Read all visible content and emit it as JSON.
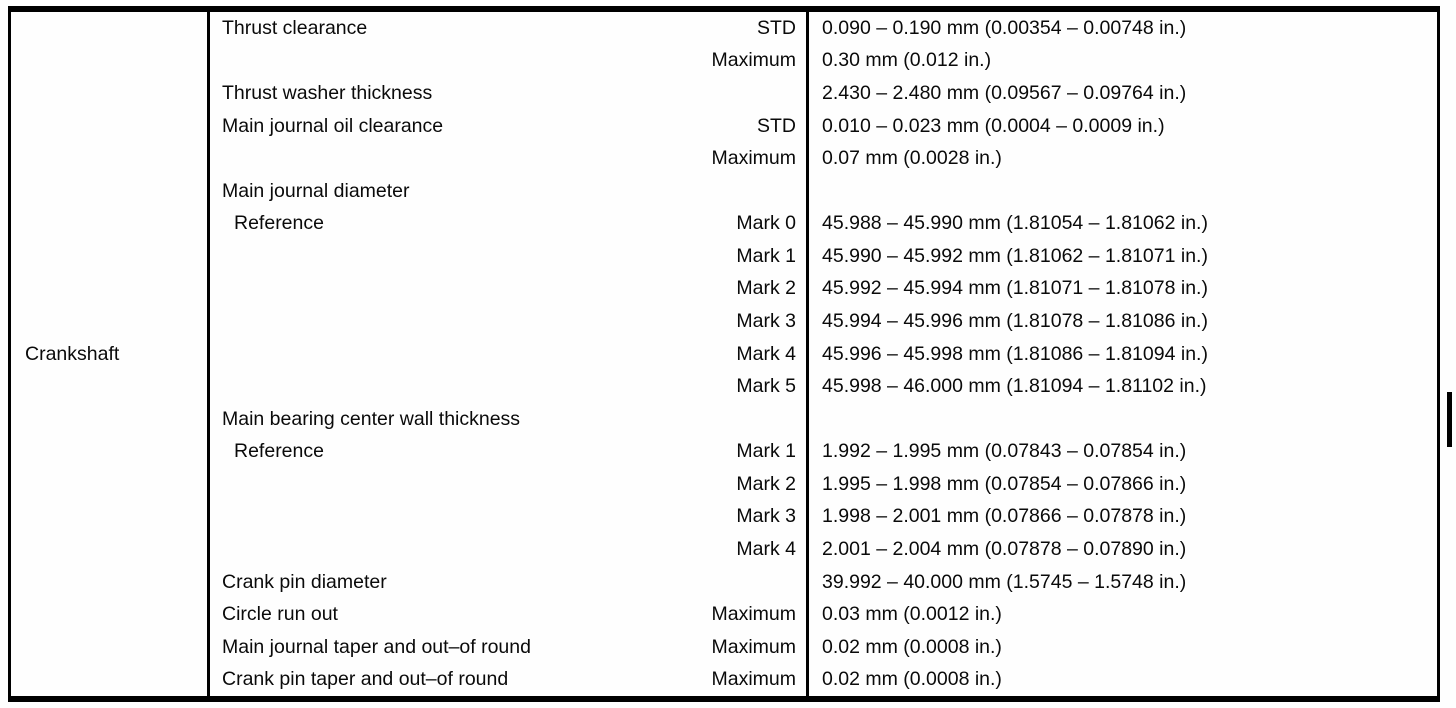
{
  "table": {
    "component": "Crankshaft",
    "rows": [
      {
        "label": "Thrust clearance",
        "indent": false,
        "qualifier": "STD",
        "value": "0.090 – 0.190 mm (0.00354 – 0.00748 in.)"
      },
      {
        "label": "",
        "indent": false,
        "qualifier": "Maximum",
        "value": "0.30 mm (0.012 in.)"
      },
      {
        "label": "Thrust washer thickness",
        "indent": false,
        "qualifier": "",
        "value": "2.430 – 2.480 mm (0.09567 – 0.09764 in.)"
      },
      {
        "label": "Main journal oil clearance",
        "indent": false,
        "qualifier": "STD",
        "value": "0.010 – 0.023 mm (0.0004 – 0.0009 in.)"
      },
      {
        "label": "",
        "indent": false,
        "qualifier": "Maximum",
        "value": "0.07 mm (0.0028 in.)"
      },
      {
        "label": "Main journal diameter",
        "indent": false,
        "qualifier": "",
        "value": ""
      },
      {
        "label": "Reference",
        "indent": true,
        "qualifier": "Mark 0",
        "value": "45.988 – 45.990 mm (1.81054 – 1.81062 in.)"
      },
      {
        "label": "",
        "indent": false,
        "qualifier": "Mark 1",
        "value": "45.990 – 45.992 mm (1.81062 – 1.81071 in.)"
      },
      {
        "label": "",
        "indent": false,
        "qualifier": "Mark 2",
        "value": "45.992 – 45.994 mm (1.81071 – 1.81078 in.)"
      },
      {
        "label": "",
        "indent": false,
        "qualifier": "Mark 3",
        "value": "45.994 – 45.996 mm (1.81078 – 1.81086 in.)"
      },
      {
        "label": "",
        "indent": false,
        "qualifier": "Mark 4",
        "value": "45.996 – 45.998 mm (1.81086 – 1.81094 in.)"
      },
      {
        "label": "",
        "indent": false,
        "qualifier": "Mark 5",
        "value": "45.998 – 46.000 mm (1.81094 – 1.81102 in.)"
      },
      {
        "label": "Main bearing center wall thickness",
        "indent": false,
        "qualifier": "",
        "value": ""
      },
      {
        "label": "Reference",
        "indent": true,
        "qualifier": "Mark 1",
        "value": "1.992 – 1.995 mm (0.07843 – 0.07854 in.)"
      },
      {
        "label": "",
        "indent": false,
        "qualifier": "Mark 2",
        "value": "1.995 – 1.998 mm (0.07854 – 0.07866 in.)"
      },
      {
        "label": "",
        "indent": false,
        "qualifier": "Mark 3",
        "value": "1.998 – 2.001 mm (0.07866 – 0.07878 in.)"
      },
      {
        "label": "",
        "indent": false,
        "qualifier": "Mark 4",
        "value": "2.001 – 2.004 mm (0.07878 – 0.07890 in.)"
      },
      {
        "label": "Crank pin diameter",
        "indent": false,
        "qualifier": "",
        "value": "39.992 – 40.000 mm (1.5745 – 1.5748 in.)"
      },
      {
        "label": "Circle run out",
        "indent": false,
        "qualifier": "Maximum",
        "value": "0.03 mm (0.0012 in.)"
      },
      {
        "label": "Main journal taper and out–of round",
        "indent": false,
        "qualifier": "Maximum",
        "value": "0.02 mm (0.0008 in.)"
      },
      {
        "label": "Crank pin taper and out–of round",
        "indent": false,
        "qualifier": "Maximum",
        "value": "0.02 mm (0.0008 in.)"
      }
    ]
  }
}
